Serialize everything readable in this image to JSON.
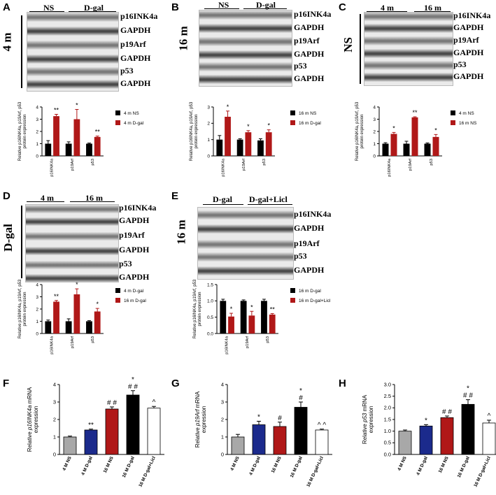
{
  "panels": {
    "A": {
      "label": "A",
      "group_labels": [
        "NS",
        "D-gal"
      ],
      "age_label": "4 m",
      "proteins": [
        "p16INK4a",
        "GAPDH",
        "p19Arf",
        "GAPDH",
        "p53",
        "GAPDH"
      ]
    },
    "B": {
      "label": "B",
      "group_labels": [
        "NS",
        "D-gal"
      ],
      "age_label": "16 m",
      "proteins": [
        "p16INK4a",
        "GAPDH",
        "p19Arf",
        "GAPDH",
        "p53",
        "GAPDH"
      ]
    },
    "C": {
      "label": "C",
      "group_labels": [
        "4 m",
        "16 m"
      ],
      "age_label": "NS",
      "proteins": [
        "p16INK4a",
        "GAPDH",
        "p19Arf",
        "GAPDH",
        "p53",
        "GAPDH"
      ]
    },
    "D": {
      "label": "D",
      "group_labels": [
        "4 m",
        "16 m"
      ],
      "age_label": "D-gal",
      "proteins": [
        "p16INK4a",
        "GAPDH",
        "p19Arf",
        "GAPDH",
        "p53",
        "GAPDH"
      ]
    },
    "E": {
      "label": "E",
      "group_labels": [
        "D-gal",
        "D-gal+Licl"
      ],
      "age_label": "16 m",
      "proteins": [
        "p16INK4a",
        "GAPDH",
        "p19Arf",
        "p53",
        "GAPDH"
      ]
    },
    "F": {
      "label": "F"
    },
    "G": {
      "label": "G"
    },
    "H": {
      "label": "H"
    }
  },
  "colors": {
    "black": "#000000",
    "red": "#b01818",
    "gray": "#a8a8a8",
    "blue": "#1b2a8c",
    "white": "#ffffff"
  },
  "chart_data": [
    {
      "id": "A",
      "type": "bar",
      "ylabel": "Relative p16INK4a, p19Arf, p53 protein expression",
      "categories": [
        "p16INK4a",
        "p19Arf",
        "p53"
      ],
      "ylim": [
        0,
        4
      ],
      "yticks": [
        0,
        1,
        2,
        3,
        4
      ],
      "series": [
        {
          "name": "4 m NS",
          "color": "#000000",
          "values": [
            1.0,
            1.0,
            1.0
          ],
          "errors": [
            0.25,
            0.15,
            0.05
          ],
          "marks": [
            "",
            "",
            ""
          ]
        },
        {
          "name": "4 m D-gal",
          "color": "#b01818",
          "values": [
            3.25,
            3.0,
            1.55
          ],
          "errors": [
            0.15,
            0.8,
            0.07
          ],
          "marks": [
            "**",
            "*",
            "**"
          ]
        }
      ]
    },
    {
      "id": "B",
      "type": "bar",
      "ylabel": "Relative p16INK4a, p19Arf, p53 protein expression",
      "categories": [
        "p16INK4a",
        "p19Arf",
        "p53"
      ],
      "ylim": [
        0,
        3
      ],
      "yticks": [
        0,
        1,
        2,
        3
      ],
      "series": [
        {
          "name": "16 m NS",
          "color": "#000000",
          "values": [
            1.0,
            1.0,
            0.95
          ],
          "errors": [
            0.25,
            0.05,
            0.1
          ],
          "marks": [
            "",
            "",
            ""
          ]
        },
        {
          "name": "16 m D-gal",
          "color": "#b01818",
          "values": [
            2.4,
            1.45,
            1.45
          ],
          "errors": [
            0.35,
            0.1,
            0.15
          ],
          "marks": [
            "*",
            "*",
            "*"
          ]
        }
      ]
    },
    {
      "id": "C",
      "type": "bar",
      "ylabel": "Relative p16INK4a, p19Arf, p53 protein expression",
      "categories": [
        "p16INK4a",
        "p19Arf",
        "p53"
      ],
      "ylim": [
        0,
        4
      ],
      "yticks": [
        0,
        1,
        2,
        3,
        4
      ],
      "series": [
        {
          "name": "4 m NS",
          "color": "#000000",
          "values": [
            1.0,
            1.0,
            1.0
          ],
          "errors": [
            0.08,
            0.2,
            0.06
          ],
          "marks": [
            "",
            "",
            ""
          ]
        },
        {
          "name": "16 m NS",
          "color": "#b01818",
          "values": [
            1.8,
            3.15,
            1.55
          ],
          "errors": [
            0.12,
            0.05,
            0.2
          ],
          "marks": [
            "*",
            "**",
            "*"
          ]
        }
      ]
    },
    {
      "id": "D",
      "type": "bar",
      "ylabel": "Relative p16INK4a, p19Arf, p53 protein expression",
      "categories": [
        "p16INK4a",
        "p19Arf",
        "p53"
      ],
      "ylim": [
        0,
        4
      ],
      "yticks": [
        0,
        1,
        2,
        3,
        4
      ],
      "series": [
        {
          "name": "4 m D-gal",
          "color": "#000000",
          "values": [
            1.0,
            1.0,
            1.0
          ],
          "errors": [
            0.1,
            0.2,
            0.05
          ],
          "marks": [
            "",
            "",
            ""
          ]
        },
        {
          "name": "16 m D-gal",
          "color": "#b01818",
          "values": [
            2.6,
            3.2,
            1.8
          ],
          "errors": [
            0.1,
            0.45,
            0.25
          ],
          "marks": [
            "**",
            "*",
            "*"
          ]
        }
      ]
    },
    {
      "id": "E",
      "type": "bar",
      "ylabel": "Relative p16INK4a, p19Arf, p53 protein expression",
      "categories": [
        "p16INK4a",
        "p19Arf",
        "p53"
      ],
      "ylim": [
        0,
        1.5
      ],
      "yticks": [
        0,
        0.5,
        1.0,
        1.5
      ],
      "yticklabels": [
        "0.0",
        "0.5",
        "1.0",
        "1.5"
      ],
      "series": [
        {
          "name": "16 m D-gal",
          "color": "#000000",
          "values": [
            1.0,
            1.0,
            1.0
          ],
          "errors": [
            0.05,
            0.03,
            0.05
          ],
          "marks": [
            "",
            "",
            ""
          ]
        },
        {
          "name": "16 m D-gal+Licl",
          "color": "#b01818",
          "values": [
            0.52,
            0.55,
            0.58
          ],
          "errors": [
            0.1,
            0.13,
            0.03
          ],
          "marks": [
            "*",
            "*",
            "**"
          ]
        }
      ]
    },
    {
      "id": "F",
      "type": "bar",
      "ylabel": "Relative p16INK4a mRNA expression",
      "categories": [
        "4 M NS",
        "4 M D-gal",
        "16 M NS",
        "16 M D-gal",
        "16 M D-gal+Licl"
      ],
      "ylim": [
        0,
        4
      ],
      "yticks": [
        0,
        1,
        2,
        3,
        4
      ],
      "values": [
        1.0,
        1.4,
        2.6,
        3.4,
        2.65
      ],
      "errors": [
        0.05,
        0.05,
        0.12,
        0.25,
        0.1
      ],
      "colors": [
        "#a8a8a8",
        "#1b2a8c",
        "#b01818",
        "#000000",
        "#ffffff"
      ],
      "marks": [
        "",
        "**",
        "# #",
        "*\n# #",
        "^"
      ]
    },
    {
      "id": "G",
      "type": "bar",
      "ylabel": "Relative p19Arf mRNA expression",
      "categories": [
        "4 M NS",
        "4 M D-gal",
        "16 M NS",
        "16 M D-gal",
        "16 M D-gal+Licl"
      ],
      "ylim": [
        0,
        4
      ],
      "yticks": [
        0,
        1,
        2,
        3,
        4
      ],
      "values": [
        1.0,
        1.7,
        1.6,
        2.7,
        1.4
      ],
      "errors": [
        0.15,
        0.2,
        0.25,
        0.3,
        0.05
      ],
      "colors": [
        "#a8a8a8",
        "#1b2a8c",
        "#b01818",
        "#000000",
        "#ffffff"
      ],
      "marks": [
        "",
        "*",
        "#",
        "*\n#",
        "^ ^"
      ]
    },
    {
      "id": "H",
      "type": "bar",
      "ylabel": "Relative p53 mRNA expression",
      "categories": [
        "4 M NS",
        "4 M D-gal",
        "16 M NS",
        "16 M D-gal",
        "16 M D-gal+Licl"
      ],
      "ylim": [
        0,
        3.0
      ],
      "yticks": [
        0,
        0.5,
        1.0,
        1.5,
        2.0,
        2.5,
        3.0
      ],
      "yticklabels": [
        "0.0",
        "0.5",
        "1.0",
        "1.5",
        "2.0",
        "2.5",
        "3.0"
      ],
      "values": [
        1.0,
        1.22,
        1.58,
        2.15,
        1.35
      ],
      "errors": [
        0.05,
        0.06,
        0.07,
        0.2,
        0.12
      ],
      "colors": [
        "#a8a8a8",
        "#1b2a8c",
        "#b01818",
        "#000000",
        "#ffffff"
      ],
      "marks": [
        "",
        "*",
        "# #",
        "*\n# #",
        "^"
      ]
    }
  ]
}
